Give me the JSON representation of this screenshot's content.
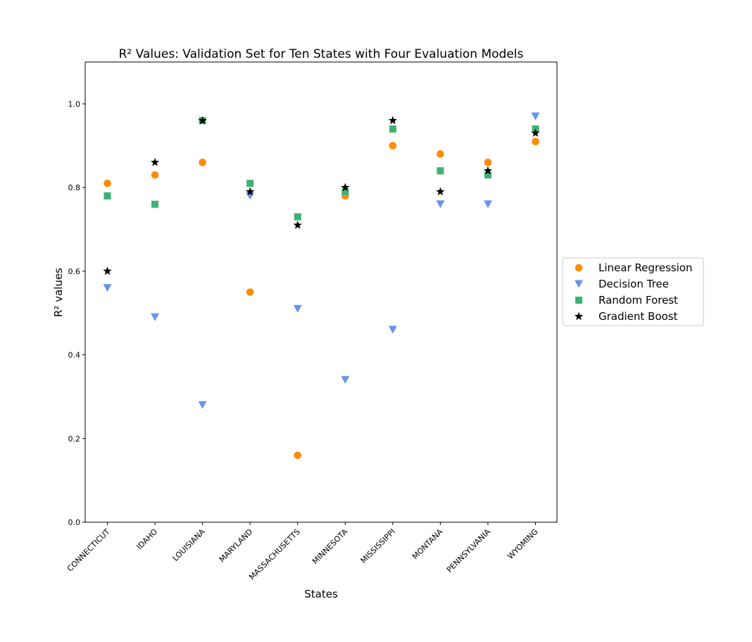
{
  "chart_data": {
    "type": "scatter",
    "title": "R² Values: Validation Set for Ten States with Four Evaluation Models",
    "xlabel": "States",
    "ylabel": "R² values",
    "categories": [
      "CONNECTICUT",
      "IDAHO",
      "LOUISIANA",
      "MARYLAND",
      "MASSACHUSETTS",
      "MINNESOTA",
      "MISSISSIPPI",
      "MONTANA",
      "PENNSYLVANIA",
      "WYOMING"
    ],
    "ylim": [
      0.0,
      1.1
    ],
    "yticks": [
      "0.0",
      "0.2",
      "0.4",
      "0.6",
      "0.8",
      "1.0"
    ],
    "grid": false,
    "legend_position": "right",
    "series": [
      {
        "name": "Linear Regression",
        "marker": "circle",
        "color": "#ff8c00",
        "values": [
          0.81,
          0.83,
          0.86,
          0.55,
          0.16,
          0.78,
          0.9,
          0.88,
          0.86,
          0.91
        ]
      },
      {
        "name": "Decision Tree",
        "marker": "triangle-down",
        "color": "#6495ed",
        "values": [
          0.56,
          0.49,
          0.28,
          0.78,
          0.51,
          0.34,
          0.46,
          0.76,
          0.76,
          0.97
        ]
      },
      {
        "name": "Random Forest",
        "marker": "square",
        "color": "#3cb371",
        "values": [
          0.78,
          0.76,
          0.96,
          0.81,
          0.73,
          0.79,
          0.94,
          0.84,
          0.83,
          0.94
        ]
      },
      {
        "name": "Gradient Boost",
        "marker": "star",
        "color": "#000000",
        "values": [
          0.6,
          0.86,
          0.96,
          0.79,
          0.71,
          0.8,
          0.96,
          0.79,
          0.84,
          0.93
        ]
      }
    ]
  }
}
